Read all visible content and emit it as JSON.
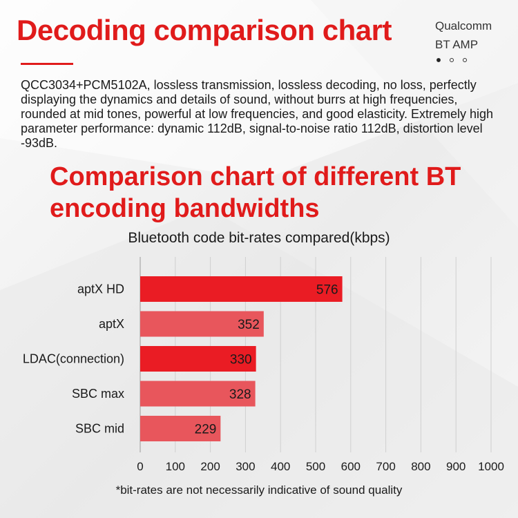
{
  "header": {
    "title": "Decoding comparison chart",
    "brand_line1": "Qualcomm",
    "brand_line2": "BT AMP"
  },
  "pagination": {
    "count": 3,
    "active": 0
  },
  "description": "QCC3034+PCM5102A, lossless transmission, lossless decoding, no loss, perfectly displaying the dynamics and details of sound, without burrs at high frequencies, rounded at mid tones, powerful at low frequencies, and good elasticity. Extremely high parameter performance: dynamic 112dB, signal-to-noise ratio 112dB, distortion level -93dB.",
  "subtitle": "Comparison chart of different BT encoding bandwidths",
  "footnote": "*bit-rates are not necessarily indicative of sound quality",
  "colors": {
    "accent": "#e01b1b",
    "bar_dark": "#ea1c24",
    "bar_light": "#e8565c"
  },
  "chart_data": {
    "type": "bar",
    "orientation": "horizontal",
    "title": "Bluetooth code bit-rates compared(kbps)",
    "categories": [
      "aptX HD",
      "aptX",
      "LDAC(connection)",
      "SBC max",
      "SBC mid"
    ],
    "values": [
      576,
      352,
      330,
      328,
      229
    ],
    "bar_colors": [
      "#ea1c24",
      "#e8565c",
      "#ea1c24",
      "#e8565c",
      "#e8565c"
    ],
    "xlim": [
      0,
      1000
    ],
    "xticks": [
      0,
      100,
      200,
      300,
      400,
      500,
      600,
      700,
      800,
      900,
      1000
    ],
    "grid": true,
    "data_labels": true
  }
}
